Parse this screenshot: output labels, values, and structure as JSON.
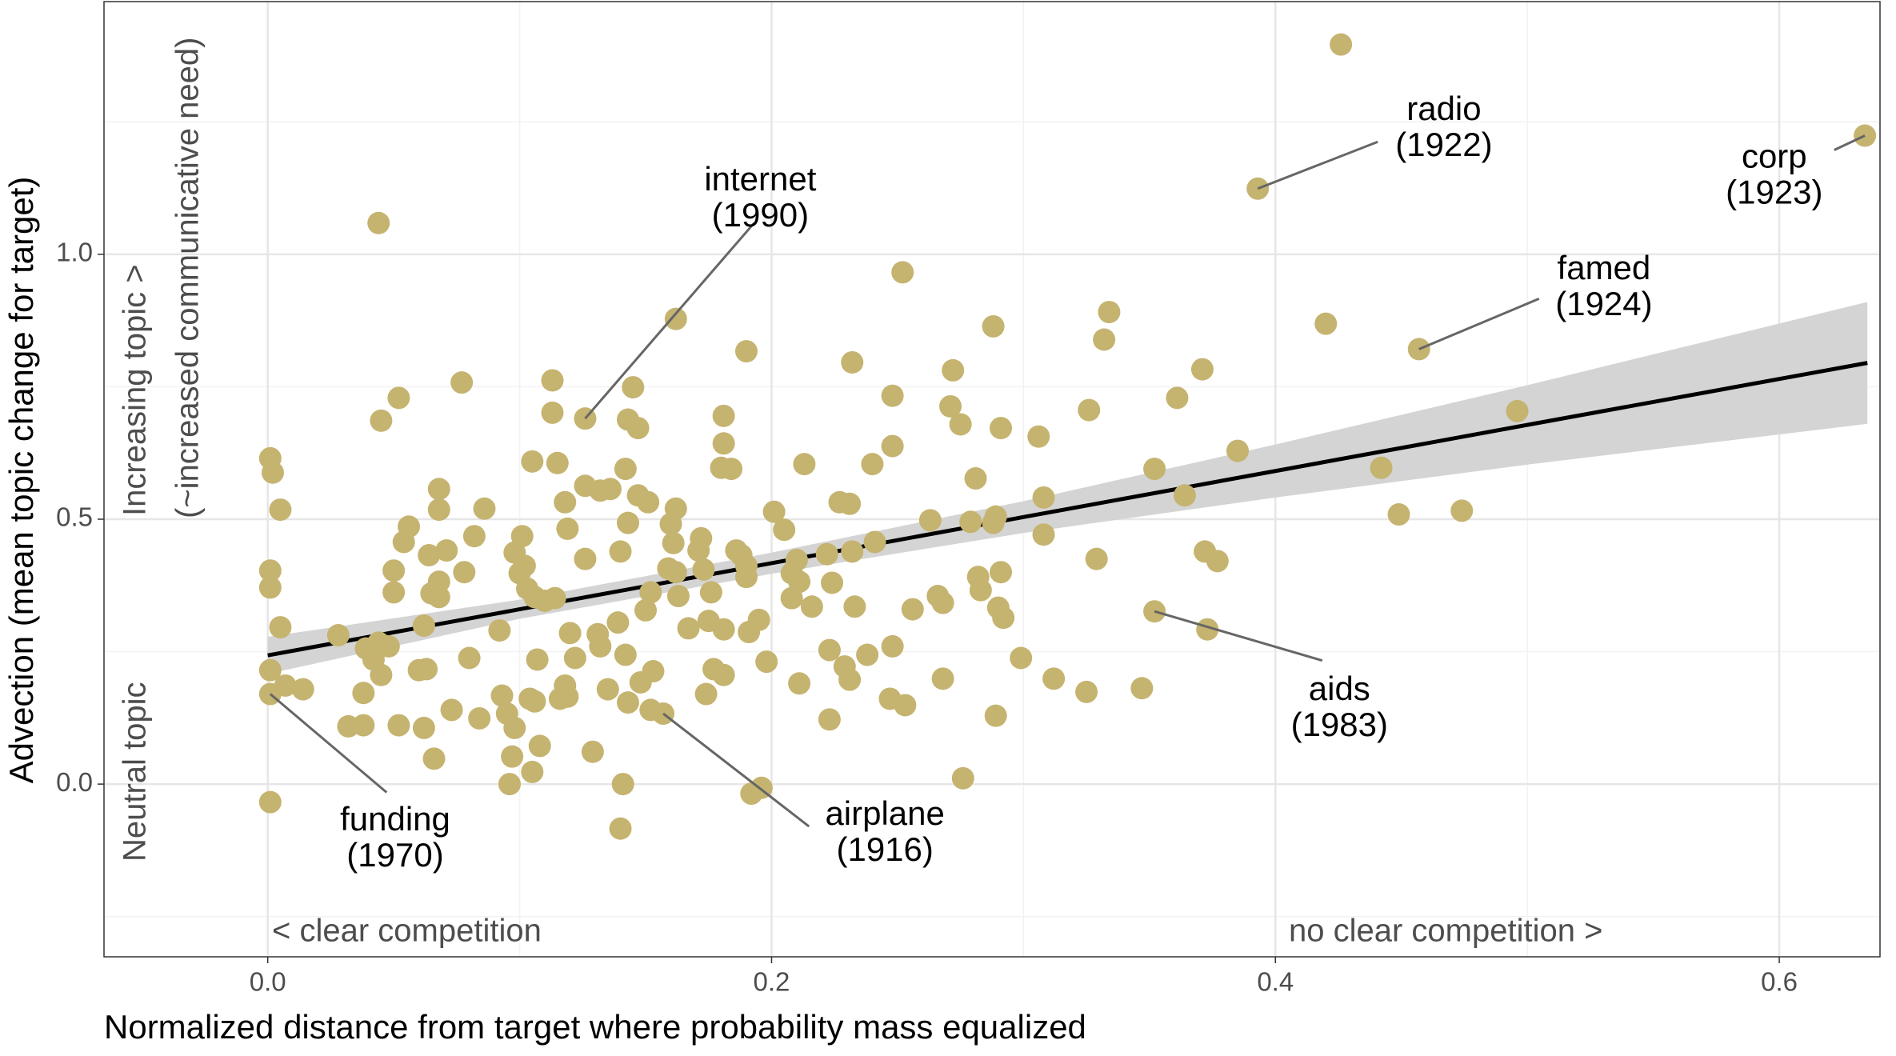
{
  "chart_data": {
    "type": "scatter",
    "x_label": "Normalized distance from target where probability mass equalized",
    "y_label": "Advection (mean topic change for target)",
    "xlim": [
      -0.065,
      0.64
    ],
    "ylim": [
      -0.326,
      1.477
    ],
    "xticks": [
      {
        "value": 0,
        "label": "0.0"
      },
      {
        "value": 0.2,
        "label": "0.2"
      },
      {
        "value": 0.4,
        "label": "0.4"
      },
      {
        "value": 0.6,
        "label": "0.6"
      }
    ],
    "yticks": [
      {
        "value": 0,
        "label": "0.0"
      },
      {
        "value": 0.5,
        "label": "0.5"
      },
      {
        "value": 1,
        "label": "1.0"
      }
    ],
    "xminor": [
      0.1,
      0.3,
      0.5
    ],
    "yminor": [
      -0.25,
      0.25,
      0.75,
      1.25
    ],
    "grid": true,
    "color": "#c5b370",
    "x": [
      0.001,
      0.002,
      0.005,
      0.001,
      0.001,
      0.005,
      0.001,
      0.001,
      0.007,
      0.014,
      0.001,
      0.028,
      0.044,
      0.045,
      0.052,
      0.077,
      0.068,
      0.068,
      0.056,
      0.054,
      0.05,
      0.05,
      0.064,
      0.071,
      0.068,
      0.068,
      0.065,
      0.062,
      0.082,
      0.086,
      0.078,
      0.044,
      0.042,
      0.039,
      0.045,
      0.048,
      0.038,
      0.06,
      0.063,
      0.08,
      0.038,
      0.032,
      0.052,
      0.062,
      0.073,
      0.084,
      0.066,
      0.093,
      0.095,
      0.098,
      0.097,
      0.096,
      0.105,
      0.108,
      0.106,
      0.104,
      0.116,
      0.118,
      0.119,
      0.092,
      0.098,
      0.101,
      0.102,
      0.1,
      0.103,
      0.106,
      0.107,
      0.11,
      0.114,
      0.105,
      0.115,
      0.113,
      0.113,
      0.119,
      0.118,
      0.12,
      0.122,
      0.126,
      0.126,
      0.126,
      0.132,
      0.136,
      0.131,
      0.132,
      0.135,
      0.129,
      0.14,
      0.141,
      0.143,
      0.142,
      0.139,
      0.14,
      0.143,
      0.142,
      0.143,
      0.147,
      0.145,
      0.147,
      0.151,
      0.15,
      0.152,
      0.148,
      0.153,
      0.152,
      0.157,
      0.16,
      0.161,
      0.162,
      0.162,
      0.159,
      0.163,
      0.162,
      0.167,
      0.171,
      0.172,
      0.173,
      0.175,
      0.176,
      0.174,
      0.177,
      0.181,
      0.181,
      0.181,
      0.18,
      0.184,
      0.186,
      0.188,
      0.19,
      0.19,
      0.181,
      0.191,
      0.19,
      0.195,
      0.198,
      0.192,
      0.196,
      0.211,
      0.201,
      0.205,
      0.208,
      0.208,
      0.211,
      0.213,
      0.21,
      0.216,
      0.223,
      0.223,
      0.222,
      0.224,
      0.227,
      0.231,
      0.232,
      0.229,
      0.231,
      0.233,
      0.232,
      0.238,
      0.241,
      0.24,
      0.247,
      0.248,
      0.248,
      0.253,
      0.248,
      0.252,
      0.256,
      0.263,
      0.266,
      0.268,
      0.268,
      0.271,
      0.272,
      0.275,
      0.276,
      0.279,
      0.281,
      0.282,
      0.283,
      0.288,
      0.288,
      0.289,
      0.289,
      0.291,
      0.291,
      0.29,
      0.292,
      0.299,
      0.306,
      0.308,
      0.308,
      0.312,
      0.325,
      0.326,
      0.329,
      0.332,
      0.334,
      0.347,
      0.352,
      0.352,
      0.361,
      0.364,
      0.371,
      0.372,
      0.373,
      0.377,
      0.385,
      0.393,
      0.42,
      0.426,
      0.442,
      0.449,
      0.457,
      0.474,
      0.496,
      0.634
    ],
    "y": [
      0.615,
      0.588,
      0.518,
      0.403,
      0.371,
      0.296,
      0.215,
      0.17,
      0.186,
      0.179,
      -0.034,
      0.281,
      1.059,
      0.686,
      0.729,
      0.758,
      0.557,
      0.518,
      0.486,
      0.457,
      0.403,
      0.362,
      0.432,
      0.441,
      0.382,
      0.353,
      0.36,
      0.299,
      0.468,
      0.52,
      0.4,
      0.267,
      0.235,
      0.256,
      0.206,
      0.26,
      0.172,
      0.215,
      0.217,
      0.238,
      0.111,
      0.109,
      0.111,
      0.106,
      0.14,
      0.124,
      0.048,
      0.167,
      0.133,
      0.106,
      0.052,
      0.0,
      0.023,
      0.072,
      0.156,
      0.161,
      0.161,
      0.186,
      0.165,
      0.29,
      0.437,
      0.468,
      0.412,
      0.398,
      0.369,
      0.353,
      0.235,
      0.346,
      0.351,
      0.609,
      0.606,
      0.762,
      0.701,
      0.482,
      0.532,
      0.285,
      0.238,
      0.425,
      0.69,
      0.563,
      0.554,
      0.557,
      0.283,
      0.26,
      0.179,
      0.061,
      -0.084,
      0.0,
      0.154,
      0.244,
      0.305,
      0.439,
      0.493,
      0.595,
      0.688,
      0.672,
      0.749,
      0.545,
      0.532,
      0.328,
      0.362,
      0.192,
      0.213,
      0.14,
      0.133,
      0.491,
      0.455,
      0.52,
      0.878,
      0.407,
      0.355,
      0.4,
      0.294,
      0.441,
      0.464,
      0.405,
      0.308,
      0.362,
      0.17,
      0.217,
      0.206,
      0.695,
      0.643,
      0.597,
      0.595,
      0.441,
      0.432,
      0.412,
      0.391,
      0.292,
      0.287,
      0.817,
      0.31,
      0.231,
      -0.018,
      -0.007,
      0.19,
      0.514,
      0.48,
      0.398,
      0.351,
      0.382,
      0.604,
      0.423,
      0.335,
      0.122,
      0.253,
      0.434,
      0.38,
      0.532,
      0.529,
      0.796,
      0.222,
      0.197,
      0.335,
      0.439,
      0.244,
      0.457,
      0.604,
      0.161,
      0.733,
      0.638,
      0.149,
      0.26,
      0.966,
      0.33,
      0.498,
      0.355,
      0.342,
      0.199,
      0.713,
      0.781,
      0.679,
      0.011,
      0.495,
      0.577,
      0.391,
      0.366,
      0.864,
      0.493,
      0.505,
      0.129,
      0.672,
      0.4,
      0.333,
      0.314,
      0.238,
      0.656,
      0.541,
      0.471,
      0.199,
      0.174,
      0.706,
      0.425,
      0.839,
      0.891,
      0.181,
      0.326,
      0.595,
      0.729,
      0.545,
      0.783,
      0.439,
      0.292,
      0.421,
      0.629,
      1.124,
      0.869,
      1.396,
      0.597,
      0.509,
      0.821,
      0.516,
      0.704,
      1.224
    ],
    "fit": {
      "x": [
        0,
        0.1,
        0.2,
        0.3,
        0.4,
        0.5,
        0.635
      ],
      "y": [
        0.243,
        0.33,
        0.417,
        0.504,
        0.591,
        0.678,
        0.795
      ],
      "lower": [
        0.208,
        0.312,
        0.397,
        0.474,
        0.541,
        0.603,
        0.68
      ],
      "upper": [
        0.278,
        0.348,
        0.437,
        0.534,
        0.641,
        0.753,
        0.91
      ]
    },
    "annotations": [
      {
        "text": "internet",
        "year": "(1990)",
        "x": 0.126,
        "y": 0.69
      },
      {
        "text": "radio",
        "year": "(1922)",
        "x": 0.393,
        "y": 1.124
      },
      {
        "text": "corp",
        "year": "(1923)",
        "x": 0.634,
        "y": 1.224
      },
      {
        "text": "famed",
        "year": "(1924)",
        "x": 0.457,
        "y": 0.821
      },
      {
        "text": "aids",
        "year": "(1983)",
        "x": 0.352,
        "y": 0.326
      },
      {
        "text": "funding",
        "year": "(1970)",
        "x": 0.001,
        "y": 0.17
      },
      {
        "text": "airplane",
        "year": "(1916)",
        "x": 0.157,
        "y": 0.133
      }
    ],
    "side_labels": {
      "increasing": "Increasing topic >",
      "need": "(~increased communicative need)",
      "neutral": "Neutral topic",
      "clear": "< clear competition",
      "no_clear": "no clear competition >"
    }
  }
}
